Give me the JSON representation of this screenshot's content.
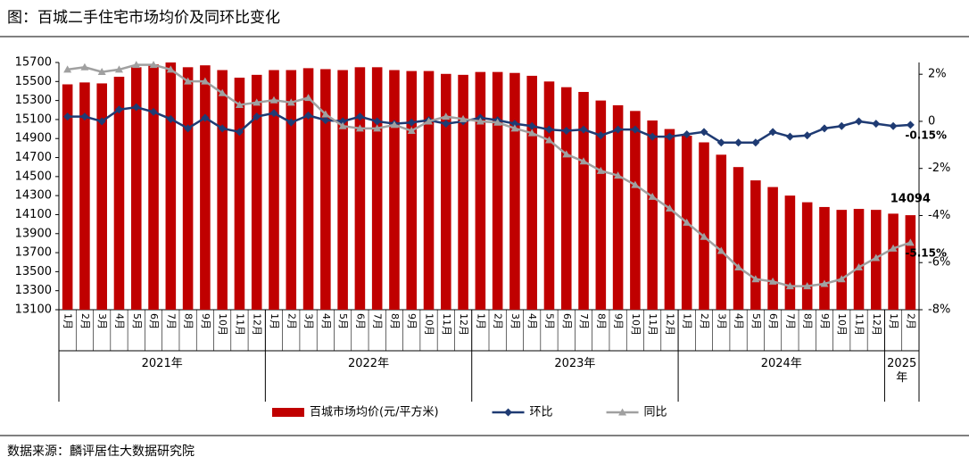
{
  "chart_data": {
    "type": "combo",
    "title": "图：百城二手住宅市场均价及同环比变化",
    "source": "数据来源：麟评居住大数据研究院",
    "categories": [
      "1月",
      "2月",
      "3月",
      "4月",
      "5月",
      "6月",
      "7月",
      "8月",
      "9月",
      "10月",
      "11月",
      "12月",
      "1月",
      "2月",
      "3月",
      "4月",
      "5月",
      "6月",
      "7月",
      "8月",
      "9月",
      "10月",
      "11月",
      "12月",
      "1月",
      "2月",
      "3月",
      "4月",
      "5月",
      "6月",
      "7月",
      "8月",
      "9月",
      "10月",
      "11月",
      "12月",
      "1月",
      "2月",
      "3月",
      "4月",
      "5月",
      "6月",
      "7月",
      "8月",
      "9月",
      "10月",
      "11月",
      "12月",
      "1月",
      "2月"
    ],
    "years": [
      "2021年",
      "2022年",
      "2023年",
      "2024年",
      "2025年"
    ],
    "ylim": [
      13100,
      15700
    ],
    "yticks": [
      13100,
      13300,
      13500,
      13700,
      13900,
      14100,
      14300,
      14500,
      14700,
      14900,
      15100,
      15300,
      15500,
      15700
    ],
    "y2lim": [
      -8,
      2.5
    ],
    "y2ticks": [
      {
        "value": 2,
        "label": "2%"
      },
      0,
      {
        "value": -2,
        "label": "-2%"
      },
      {
        "value": -4,
        "label": "-4%"
      },
      {
        "value": -6,
        "label": "-6%"
      },
      {
        "value": -8,
        "label": "-8%"
      }
    ],
    "legend": "bottom",
    "series": [
      {
        "name": "百城市场均价(元/平方米)",
        "type": "bar",
        "color": "#c00000",
        "values": [
          15470,
          15490,
          15480,
          15550,
          15650,
          15680,
          15700,
          15650,
          15670,
          15620,
          15540,
          15570,
          15620,
          15620,
          15640,
          15630,
          15620,
          15650,
          15650,
          15620,
          15610,
          15610,
          15580,
          15570,
          15600,
          15600,
          15590,
          15560,
          15500,
          15440,
          15390,
          15300,
          15250,
          15190,
          15090,
          15000,
          14930,
          14860,
          14730,
          14600,
          14460,
          14390,
          14300,
          14230,
          14180,
          14150,
          14160,
          14150,
          14110,
          14094
        ],
        "value_labels": [
          null,
          null,
          null,
          null,
          null,
          null,
          null,
          null,
          null,
          null,
          null,
          null,
          null,
          null,
          null,
          null,
          null,
          null,
          null,
          null,
          null,
          null,
          null,
          null,
          null,
          null,
          null,
          null,
          null,
          null,
          null,
          null,
          null,
          null,
          null,
          null,
          null,
          null,
          null,
          null,
          null,
          null,
          null,
          null,
          null,
          null,
          null,
          null,
          null,
          "14094"
        ]
      },
      {
        "name": "环比",
        "type": "line",
        "axis": "y2",
        "color": "#1f3b73",
        "marker": "diamond",
        "values": [
          0.2,
          0.2,
          0.0,
          0.5,
          0.6,
          0.4,
          0.1,
          -0.3,
          0.15,
          -0.3,
          -0.45,
          0.2,
          0.35,
          -0.05,
          0.25,
          0.05,
          0.0,
          0.2,
          0.0,
          -0.1,
          -0.05,
          0.05,
          -0.1,
          0.0,
          0.15,
          0.05,
          -0.1,
          -0.2,
          -0.35,
          -0.4,
          -0.35,
          -0.6,
          -0.35,
          -0.35,
          -0.65,
          -0.65,
          -0.55,
          -0.45,
          -0.9,
          -0.9,
          -0.9,
          -0.45,
          -0.65,
          -0.6,
          -0.3,
          -0.2,
          0.0,
          -0.1,
          -0.2,
          -0.15
        ],
        "value_labels": [
          null,
          null,
          null,
          null,
          null,
          null,
          null,
          null,
          null,
          null,
          null,
          null,
          null,
          null,
          null,
          null,
          null,
          null,
          null,
          null,
          null,
          null,
          null,
          null,
          null,
          null,
          null,
          null,
          null,
          null,
          null,
          null,
          null,
          null,
          null,
          null,
          null,
          null,
          null,
          null,
          null,
          null,
          null,
          null,
          null,
          null,
          null,
          null,
          null,
          "-0.15%"
        ]
      },
      {
        "name": "同比",
        "type": "line",
        "axis": "y2",
        "color": "#a0a0a0",
        "marker": "triangle",
        "values": [
          2.2,
          2.3,
          2.1,
          2.2,
          2.4,
          2.4,
          2.2,
          1.7,
          1.7,
          1.2,
          0.7,
          0.8,
          0.9,
          0.8,
          1.0,
          0.3,
          -0.2,
          -0.3,
          -0.3,
          -0.15,
          -0.4,
          0.0,
          0.2,
          0.1,
          0.0,
          -0.05,
          -0.3,
          -0.5,
          -0.8,
          -1.4,
          -1.7,
          -2.1,
          -2.3,
          -2.7,
          -3.2,
          -3.7,
          -4.3,
          -4.9,
          -5.5,
          -6.2,
          -6.7,
          -6.8,
          -7.0,
          -7.0,
          -6.9,
          -6.7,
          -6.2,
          -5.8,
          -5.4,
          -5.15
        ],
        "value_labels": [
          null,
          null,
          null,
          null,
          null,
          null,
          null,
          null,
          null,
          null,
          null,
          null,
          null,
          null,
          null,
          null,
          null,
          null,
          null,
          null,
          null,
          null,
          null,
          null,
          null,
          null,
          null,
          null,
          null,
          null,
          null,
          null,
          null,
          null,
          null,
          null,
          null,
          null,
          null,
          null,
          null,
          null,
          null,
          null,
          null,
          null,
          null,
          null,
          null,
          "-5.15%"
        ]
      }
    ]
  }
}
